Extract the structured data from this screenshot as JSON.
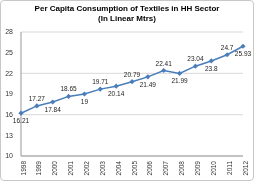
{
  "chart_data": {
    "type": "line",
    "title": "Per Capita Consumption of Textiles in HH Sector",
    "subtitle": "(In Linear Mtrs)",
    "categories": [
      "1998",
      "1999",
      "2000",
      "2001",
      "2002",
      "2003",
      "2004",
      "2005",
      "2006",
      "2007",
      "2008",
      "2009",
      "2010",
      "2011",
      "2012"
    ],
    "values": [
      16.21,
      17.27,
      17.84,
      18.65,
      19,
      19.71,
      20.14,
      20.79,
      21.49,
      22.41,
      21.99,
      23.04,
      23.8,
      24.7,
      25.93
    ],
    "color": "#4a7ebb",
    "ylim": [
      10,
      28
    ],
    "yticks": [
      10,
      13,
      16,
      19,
      22,
      25,
      28
    ],
    "grid": true,
    "marker": "diamond",
    "data_labels": true
  }
}
